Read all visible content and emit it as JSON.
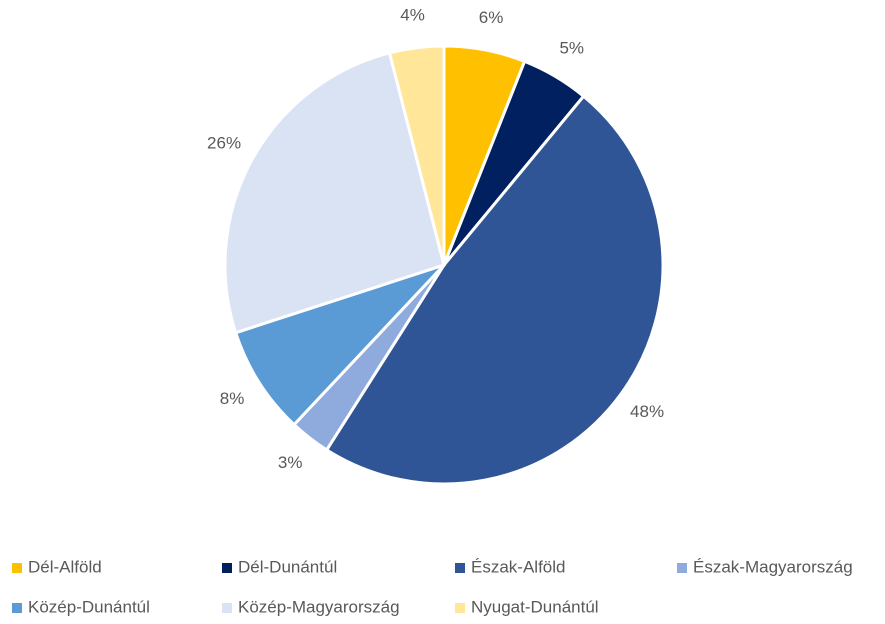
{
  "chart_data": {
    "type": "pie",
    "categories": [
      "Dél-Alföld",
      "Dél-Dunántúl",
      "Észak-Alföld",
      "Észak-Magyarország",
      "Közép-Dunántúl",
      "Közép-Magyarország",
      "Nyugat-Dunántúl"
    ],
    "values": [
      6,
      5,
      48,
      3,
      8,
      26,
      4
    ],
    "value_labels": [
      "6%",
      "5%",
      "48%",
      "3%",
      "8%",
      "26%",
      "4%"
    ],
    "colors": [
      "#FFC000",
      "#002060",
      "#2F5597",
      "#8FAADC",
      "#5B9BD5",
      "#DAE3F3",
      "#FFE699"
    ],
    "legend": "bottom"
  }
}
